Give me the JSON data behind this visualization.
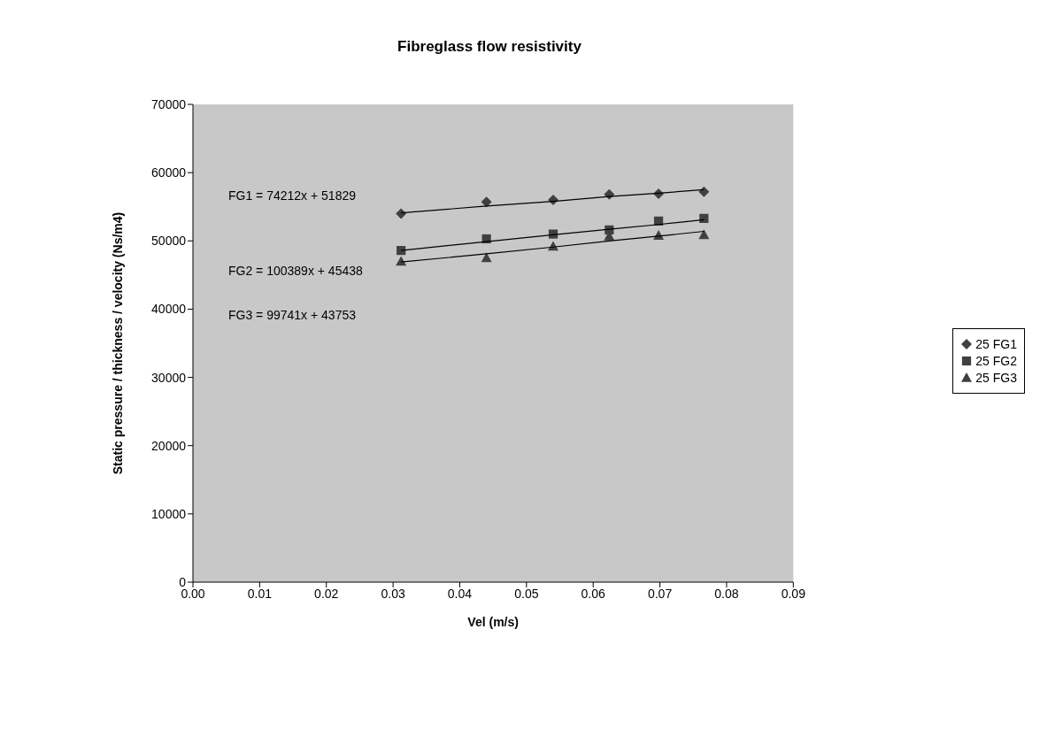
{
  "chart_data": {
    "type": "scatter",
    "title": "Fibreglass flow resistivity",
    "xlabel": "Vel (m/s)",
    "ylabel": "Static pressure / thickness / velocity (Ns/m4)",
    "xlim": [
      0,
      0.09
    ],
    "xticks": [
      {
        "value": 0,
        "label": "0.00"
      },
      {
        "value": 0.01,
        "label": "0.01"
      },
      {
        "value": 0.02,
        "label": "0.02"
      },
      {
        "value": 0.03,
        "label": "0.03"
      },
      {
        "value": 0.04,
        "label": "0.04"
      },
      {
        "value": 0.05,
        "label": "0.05"
      },
      {
        "value": 0.06,
        "label": "0.06"
      },
      {
        "value": 0.07,
        "label": "0.07"
      },
      {
        "value": 0.08,
        "label": "0.08"
      },
      {
        "value": 0.09,
        "label": "0.09"
      }
    ],
    "ylim": [
      0,
      70000
    ],
    "yticks": [
      0,
      10000,
      20000,
      30000,
      40000,
      50000,
      60000,
      70000
    ],
    "x": [
      0.0312,
      0.044,
      0.054,
      0.0624,
      0.0698,
      0.0766
    ],
    "series": [
      {
        "name": "25 FG1",
        "color": "#404040",
        "marker": "diamond",
        "values": [
          54000,
          55700,
          56000,
          56800,
          56900,
          57200
        ]
      },
      {
        "name": "25 FG2",
        "color": "#404040",
        "marker": "square",
        "values": [
          48600,
          50300,
          51000,
          51600,
          52900,
          53300
        ]
      },
      {
        "name": "25 FG3",
        "color": "#404040",
        "marker": "triangle",
        "values": [
          47000,
          47500,
          49200,
          50700,
          50800,
          50900
        ]
      },
      {
        "type": "line",
        "color": "#000000",
        "marker": "none",
        "values": [
          54100,
          55100,
          55800,
          56500,
          57000,
          57500
        ]
      },
      {
        "type": "line",
        "color": "#000000",
        "marker": "none",
        "values": [
          48600,
          49900,
          50900,
          51700,
          52400,
          53100
        ]
      },
      {
        "type": "line",
        "color": "#000000",
        "marker": "none",
        "values": [
          46900,
          48100,
          49100,
          50000,
          50700,
          51400
        ]
      }
    ],
    "annotations": [
      "FG1 = 74212x + 51829",
      "FG2 = 100389x + 45438",
      "FG3 = 99741x + 43753"
    ],
    "legend": "right",
    "grid": false
  }
}
